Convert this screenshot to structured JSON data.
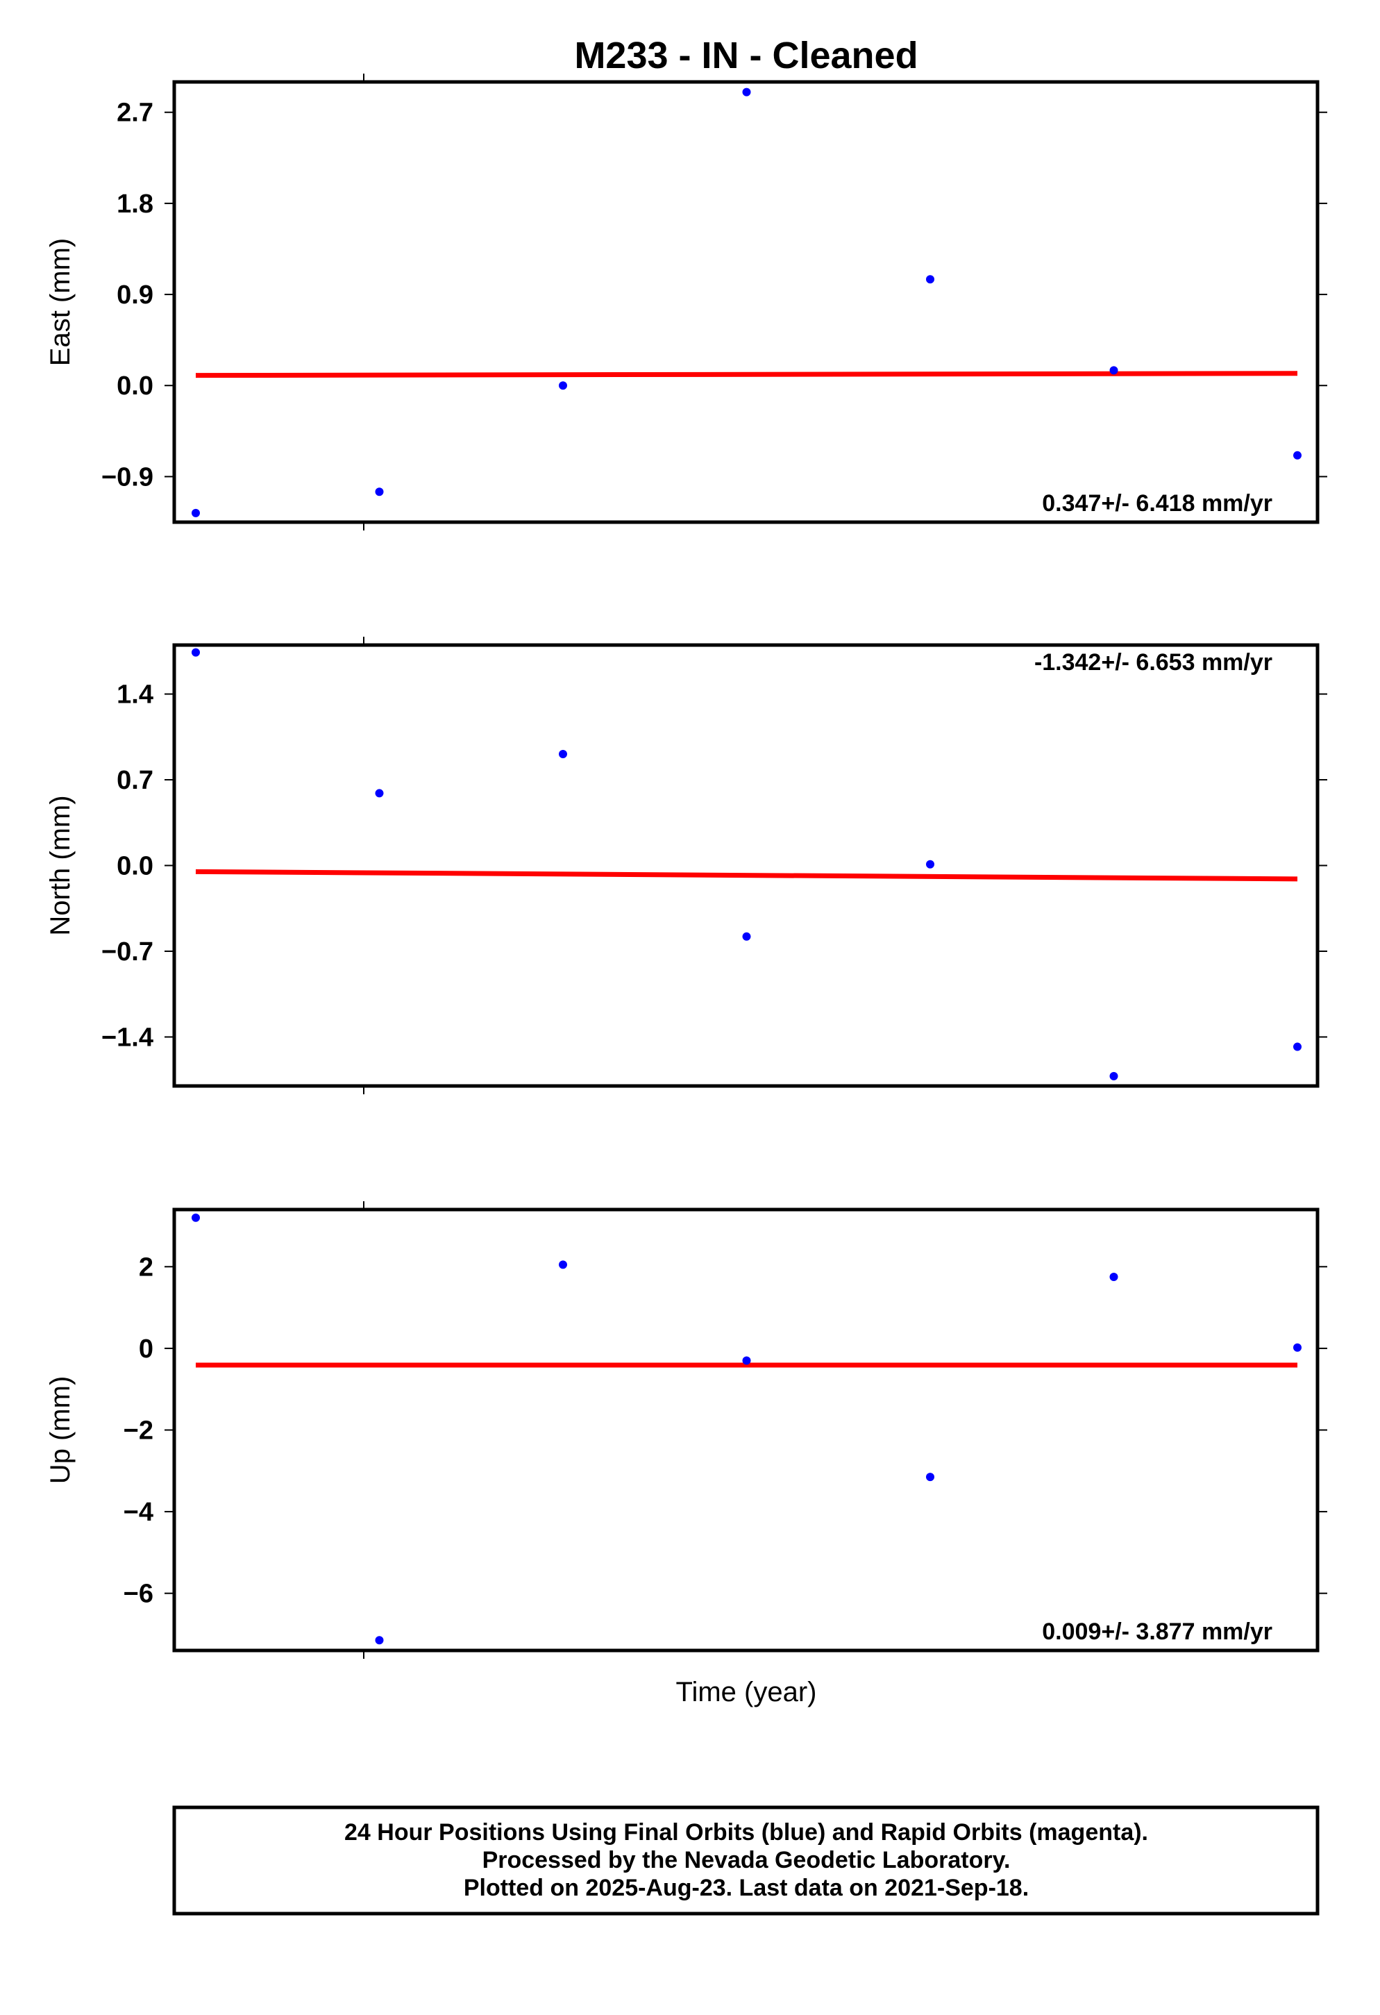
{
  "title": "M233  - IN - Cleaned",
  "xlabel": "Time (year)",
  "footer": {
    "line1": "24 Hour Positions Using Final Orbits (blue) and Rapid Orbits (magenta).",
    "line2": "Processed by the Nevada Geodetic Laboratory.",
    "line3": "Plotted on 2025-Aug-23. Last data on 2021-Sep-18."
  },
  "colors": {
    "points": "#0000ff",
    "fit": "#ff0000",
    "frame": "#000000"
  },
  "chart_data": [
    {
      "type": "scatter",
      "ylabel": "East (mm)",
      "rate_text": "0.347+/- 6.418 mm/yr",
      "rate_position": "bottom-right",
      "ylim": [
        -1.35,
        3.0
      ],
      "yticks": [
        2.7,
        1.8,
        0.9,
        0.0,
        -0.9
      ],
      "ytick_labels": [
        "2.7",
        "1.8",
        "0.9",
        "0.0",
        "−0.9"
      ],
      "x": [
        1,
        2,
        3,
        4,
        5,
        6,
        7
      ],
      "values": [
        -1.26,
        -1.05,
        0.0,
        2.9,
        1.05,
        0.15,
        -0.69
      ],
      "fit": {
        "y_start": 0.1,
        "y_end": 0.12
      }
    },
    {
      "type": "scatter",
      "ylabel": "North (mm)",
      "rate_text": "-1.342+/- 6.653 mm/yr",
      "rate_position": "top-right",
      "ylim": [
        -1.8,
        1.8
      ],
      "yticks": [
        1.4,
        0.7,
        0.0,
        -0.7,
        -1.4
      ],
      "ytick_labels": [
        "1.4",
        "0.7",
        "0.0",
        "−0.7",
        "−1.4"
      ],
      "x": [
        1,
        2,
        3,
        4,
        5,
        6,
        7
      ],
      "values": [
        1.74,
        0.59,
        0.91,
        -0.58,
        0.01,
        -1.72,
        -1.48
      ],
      "fit": {
        "y_start": -0.05,
        "y_end": -0.11
      }
    },
    {
      "type": "scatter",
      "ylabel": "Up (mm)",
      "rate_text": "0.009+/- 3.877 mm/yr",
      "rate_position": "bottom-right",
      "ylim": [
        -7.4,
        3.4
      ],
      "yticks": [
        2,
        0,
        -2,
        -4,
        -6
      ],
      "ytick_labels": [
        "2",
        "0",
        "−2",
        "−4",
        "−6"
      ],
      "x": [
        1,
        2,
        3,
        4,
        5,
        6,
        7
      ],
      "values": [
        3.2,
        -7.15,
        2.05,
        -0.3,
        -3.15,
        1.75,
        0.02
      ],
      "fit": {
        "y_start": -0.41,
        "y_end": -0.41
      }
    }
  ]
}
